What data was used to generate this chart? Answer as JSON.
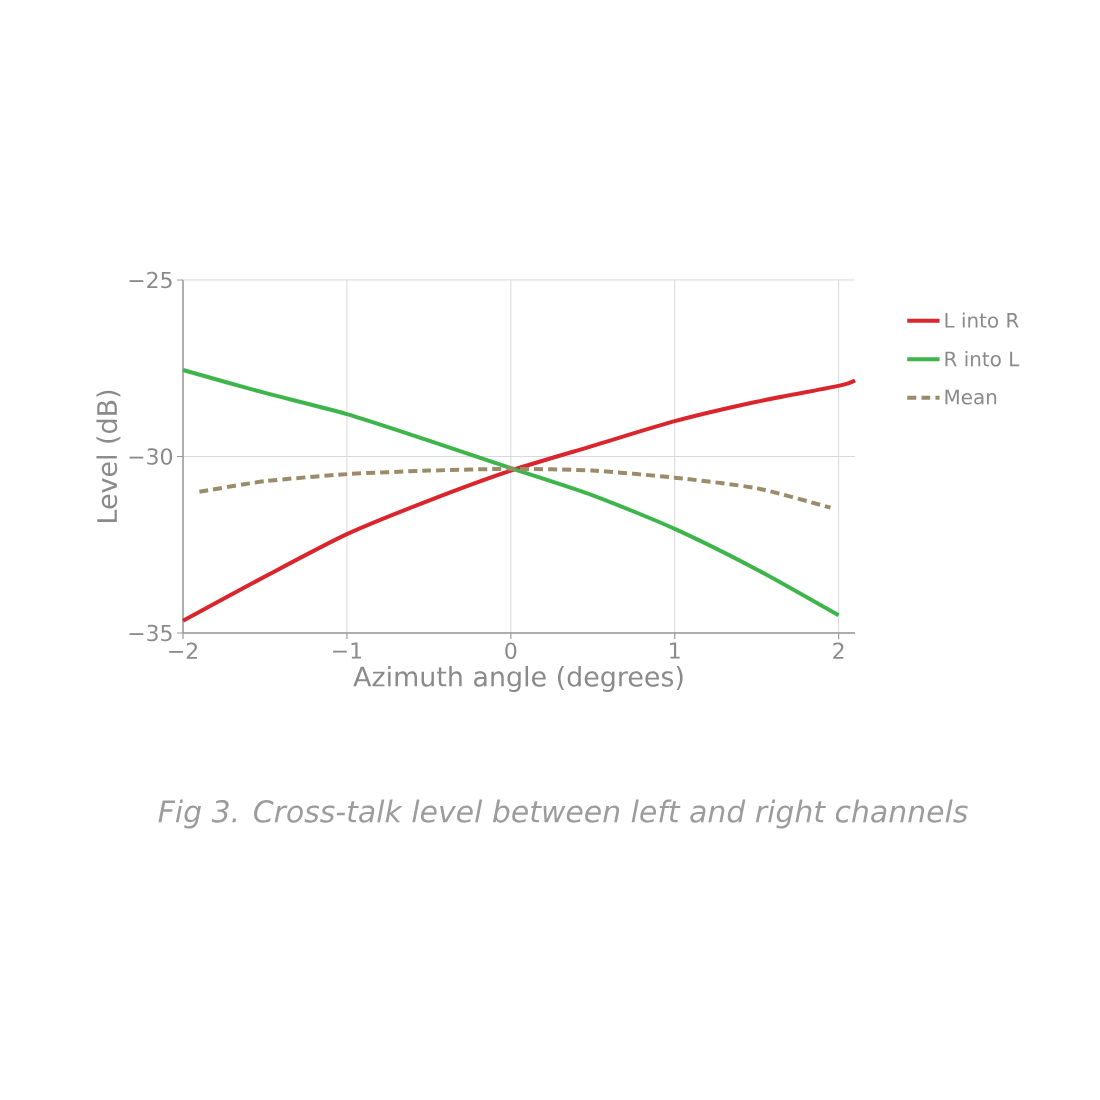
{
  "chart_data": {
    "type": "line",
    "xlabel": "Azimuth angle (degrees)",
    "ylabel": "Level (dB)",
    "annotations": [
      "*Fig 3. Cross-talk level between left and right channels*"
    ],
    "xlim": [
      -2,
      2.1
    ],
    "ylim": [
      -35,
      -25
    ],
    "xticks": [
      {
        "value": -2,
        "label": "−2"
      },
      {
        "value": -1,
        "label": "−1"
      },
      0,
      1,
      2
    ],
    "yticks": [
      {
        "value": -35,
        "label": "−35"
      },
      {
        "value": -30,
        "label": "−30"
      },
      {
        "value": -25,
        "label": "−25"
      }
    ],
    "grid": true,
    "legend": "right",
    "series": [
      {
        "name": "L into R",
        "color": "#d9252b",
        "line_style": "solid",
        "x": [
          -2,
          -1.5,
          -1,
          -0.5,
          0,
          0.5,
          1,
          1.5,
          2,
          2.1
        ],
        "values": [
          -34.65,
          -33.4,
          -32.2,
          -31.25,
          -30.4,
          -29.7,
          -29.0,
          -28.45,
          -28.0,
          -27.85
        ]
      },
      {
        "name": "R into L",
        "color": "#3db54a",
        "line_style": "solid",
        "x": [
          -2,
          -1.5,
          -1,
          -0.5,
          0,
          0.5,
          1,
          1.5,
          2
        ],
        "values": [
          -27.55,
          -28.2,
          -28.8,
          -29.55,
          -30.33,
          -31.1,
          -32.05,
          -33.2,
          -34.5
        ]
      },
      {
        "name": "Mean",
        "color": "#9a8c6a",
        "line_style": "dashed",
        "x": [
          -1.9,
          -1.5,
          -1,
          -0.5,
          0,
          0.5,
          1,
          1.5,
          1.95
        ],
        "values": [
          -31.0,
          -30.7,
          -30.5,
          -30.4,
          -30.35,
          -30.4,
          -30.6,
          -30.9,
          -31.45
        ]
      }
    ]
  }
}
